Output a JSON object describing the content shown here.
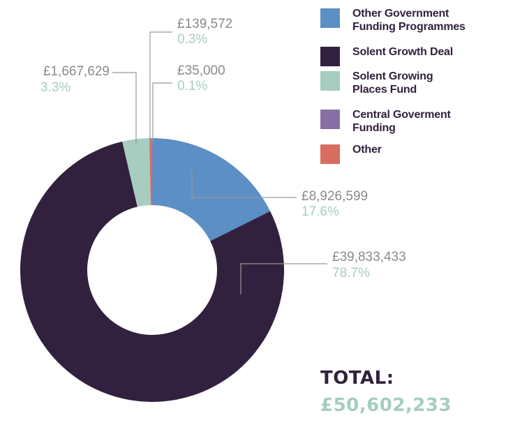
{
  "chart_data": {
    "type": "pie",
    "categories": [
      "Other Government Funding Programmes",
      "Solent Growth Deal",
      "Solent Growing Places Fund",
      "Central Goverment Funding",
      "Other"
    ],
    "values": [
      8926599,
      39833433,
      1667629,
      35000,
      139572
    ],
    "percent_labels": [
      "17.6%",
      "78.7%",
      "3.3%",
      "0.1%",
      "0.3%"
    ],
    "value_labels": [
      "£8,926,599",
      "£39,833,433",
      "£1,667,629",
      "£35,000",
      "£139,572"
    ],
    "colors": [
      "#5c8fc4",
      "#32213e",
      "#a6cdbf",
      "#8a6fa6",
      "#d86d62"
    ],
    "legend": [
      {
        "lines": [
          "Other Government",
          "Funding Programmes"
        ],
        "color": "#5c8fc4"
      },
      {
        "lines": [
          "Solent Growth Deal"
        ],
        "color": "#32213e"
      },
      {
        "lines": [
          "Solent Growing",
          "Places Fund"
        ],
        "color": "#a6cdbf"
      },
      {
        "lines": [
          "Central Goverment",
          "Funding"
        ],
        "color": "#8a6fa6"
      },
      {
        "lines": [
          "Other"
        ],
        "color": "#d86d62"
      }
    ],
    "legend_position": "top-right",
    "donut": true
  },
  "total": {
    "label": "TOTAL:",
    "value": "£50,602,233"
  },
  "colors": {
    "text_dark": "#32213e",
    "text_green": "#a6cdbf",
    "callout_gray": "#8a8a8a",
    "leader_line": "#999999"
  }
}
